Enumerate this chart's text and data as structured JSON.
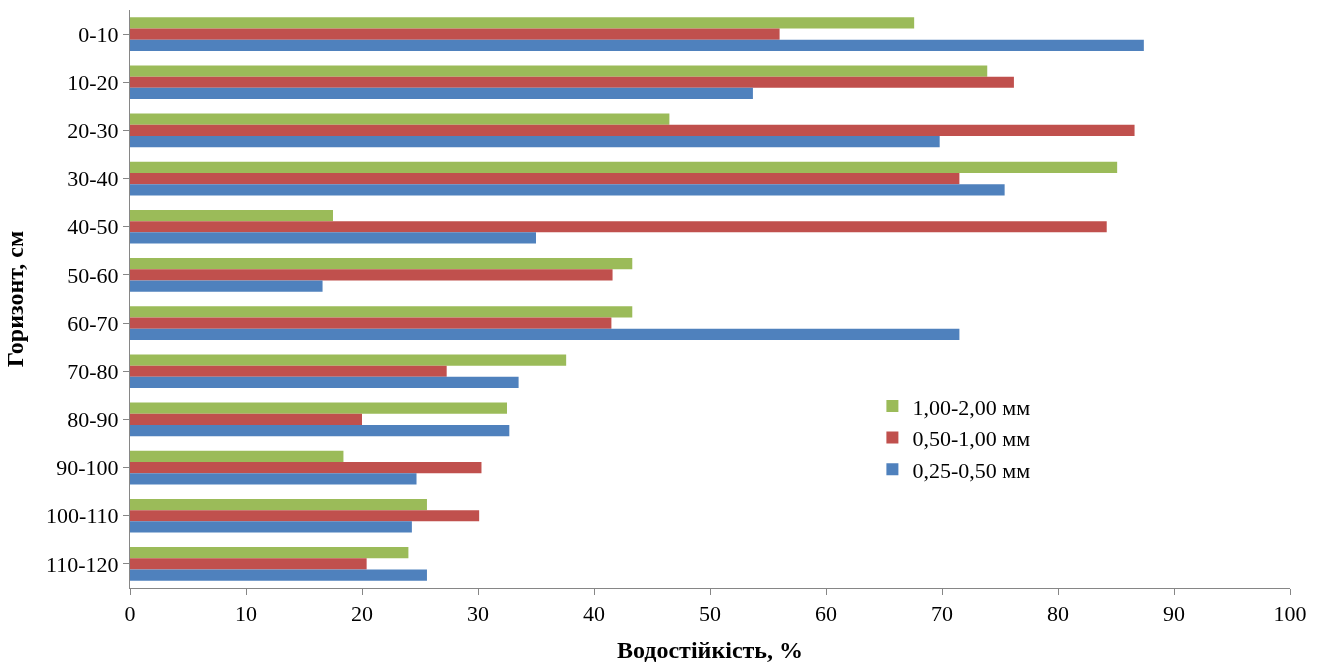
{
  "chart_data": {
    "type": "bar",
    "orientation": "horizontal",
    "xlabel": "Водостійкість, %",
    "ylabel": "Горизонт, см",
    "categories": [
      "0-10",
      "10-20",
      "20-30",
      "30-40",
      "40-50",
      "50-60",
      "60-70",
      "70-80",
      "80-90",
      "90-100",
      "100-110",
      "110-120"
    ],
    "series": [
      {
        "name": "1,00-2,00 мм",
        "color": "#9bbb59",
        "values": [
          67.6,
          73.9,
          46.5,
          85.1,
          17.5,
          43.3,
          43.3,
          37.6,
          32.5,
          18.4,
          25.6,
          24.0
        ]
      },
      {
        "name": "0,50-1,00 мм",
        "color": "#c0504d",
        "values": [
          56.0,
          76.2,
          86.6,
          71.5,
          84.2,
          41.6,
          41.5,
          27.3,
          20.0,
          30.3,
          30.1,
          20.4
        ]
      },
      {
        "name": "0,25-0,50 мм",
        "color": "#4f81bd",
        "values": [
          87.4,
          53.7,
          69.8,
          75.4,
          35.0,
          16.6,
          71.5,
          33.5,
          32.7,
          24.7,
          24.3,
          25.6
        ]
      }
    ],
    "xlim": [
      0,
      100
    ],
    "xticks": [
      0,
      10,
      20,
      30,
      40,
      50,
      60,
      70,
      80,
      90,
      100
    ],
    "grid": false,
    "legend": "right"
  }
}
